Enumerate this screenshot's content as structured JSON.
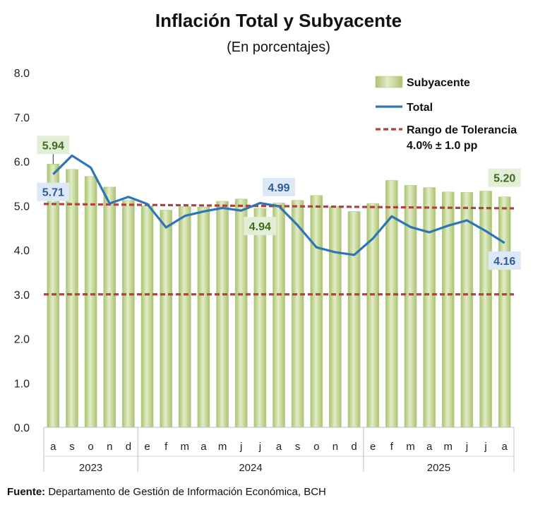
{
  "chart_data": {
    "type": "bar",
    "title": "Inflación Total y Subyacente",
    "subtitle": "(En porcentajes)",
    "categories": [
      "a",
      "s",
      "o",
      "n",
      "d",
      "e",
      "f",
      "m",
      "a",
      "m",
      "j",
      "j",
      "a",
      "s",
      "o",
      "n",
      "d",
      "e",
      "f",
      "m",
      "a",
      "m",
      "j",
      "j",
      "a"
    ],
    "years": [
      {
        "label": "2023",
        "count": 5
      },
      {
        "label": "2024",
        "count": 12
      },
      {
        "label": "2025",
        "count": 8
      }
    ],
    "series": [
      {
        "name": "Subyacente",
        "type": "bar",
        "color": "#c5d89a",
        "values": [
          5.94,
          5.82,
          5.66,
          5.42,
          5.12,
          5.0,
          4.9,
          4.98,
          4.97,
          5.1,
          5.15,
          4.94,
          5.06,
          5.12,
          5.23,
          4.98,
          4.87,
          5.05,
          5.57,
          5.46,
          5.41,
          5.31,
          5.3,
          5.33,
          5.2
        ]
      },
      {
        "name": "Total",
        "type": "line",
        "color": "#2e75b6",
        "values": [
          5.71,
          6.13,
          5.86,
          5.05,
          5.2,
          5.04,
          4.51,
          4.77,
          4.87,
          4.95,
          4.89,
          5.06,
          4.99,
          4.56,
          4.06,
          3.95,
          3.89,
          4.26,
          4.76,
          4.52,
          4.4,
          4.55,
          4.67,
          4.43,
          4.16
        ]
      },
      {
        "name": "Rango de Tolerancia\n4.0% ± 1.0 pp",
        "type": "dashed",
        "color": "#b0413e",
        "upper": [
          5.04,
          4.94
        ],
        "lower": [
          3.0,
          3.0
        ]
      }
    ],
    "annotations": [
      {
        "text": "5.94",
        "series": "Subyacente",
        "index": 0,
        "style": "green",
        "pos": "above"
      },
      {
        "text": "5.71",
        "series": "Total",
        "index": 0,
        "style": "blue",
        "pos": "below"
      },
      {
        "text": "4.99",
        "series": "Total",
        "index": 12,
        "style": "blue",
        "pos": "above"
      },
      {
        "text": "4.94",
        "series": "Subyacente",
        "index": 11,
        "style": "green",
        "pos": "below"
      },
      {
        "text": "5.20",
        "series": "Subyacente",
        "index": 24,
        "style": "green",
        "pos": "above"
      },
      {
        "text": "4.16",
        "series": "Total",
        "index": 24,
        "style": "blue",
        "pos": "below"
      }
    ],
    "yticks": [
      "0.0",
      "1.0",
      "2.0",
      "3.0",
      "4.0",
      "5.0",
      "6.0",
      "7.0",
      "8.0"
    ],
    "ylim": [
      0,
      8
    ],
    "legend_position": "top-right",
    "grid": false
  },
  "source": {
    "label": "Fuente:",
    "text": "Departamento de Gestión de Información Económica, BCH"
  }
}
